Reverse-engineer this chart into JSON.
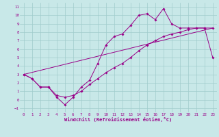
{
  "xlabel": "Windchill (Refroidissement éolien,°C)",
  "xlim": [
    -0.5,
    23.5
  ],
  "ylim": [
    -1.5,
    11.5
  ],
  "xticks": [
    0,
    1,
    2,
    3,
    4,
    5,
    6,
    7,
    8,
    9,
    10,
    11,
    12,
    13,
    14,
    15,
    16,
    17,
    18,
    19,
    20,
    21,
    22,
    23
  ],
  "yticks": [
    -1,
    0,
    1,
    2,
    3,
    4,
    5,
    6,
    7,
    8,
    9,
    10,
    11
  ],
  "bg_color": "#c8e8e8",
  "line_color": "#990088",
  "grid_color": "#a0cccc",
  "line1_x": [
    0,
    1,
    2,
    3,
    4,
    5,
    6,
    7,
    8,
    9,
    10,
    11,
    12,
    13,
    14,
    15,
    16,
    17,
    18,
    19,
    20,
    21,
    22,
    23
  ],
  "line1_y": [
    3.0,
    2.5,
    1.5,
    1.5,
    0.3,
    -0.6,
    0.3,
    1.5,
    2.3,
    4.3,
    6.5,
    7.5,
    7.8,
    8.8,
    10.0,
    10.2,
    9.5,
    10.8,
    9.0,
    8.5,
    8.5,
    8.5,
    8.5,
    5.0
  ],
  "line2_x": [
    0,
    1,
    2,
    3,
    4,
    5,
    6,
    7,
    8,
    9,
    10,
    11,
    12,
    13,
    14,
    15,
    16,
    17,
    18,
    19,
    20,
    21,
    22,
    23
  ],
  "line2_y": [
    3.0,
    2.5,
    1.5,
    1.5,
    0.5,
    0.3,
    0.5,
    1.0,
    1.8,
    2.5,
    3.2,
    3.8,
    4.3,
    5.0,
    5.8,
    6.5,
    7.0,
    7.5,
    7.8,
    8.0,
    8.3,
    8.5,
    8.5,
    8.5
  ],
  "line3_x": [
    0,
    23
  ],
  "line3_y": [
    3.0,
    8.5
  ]
}
